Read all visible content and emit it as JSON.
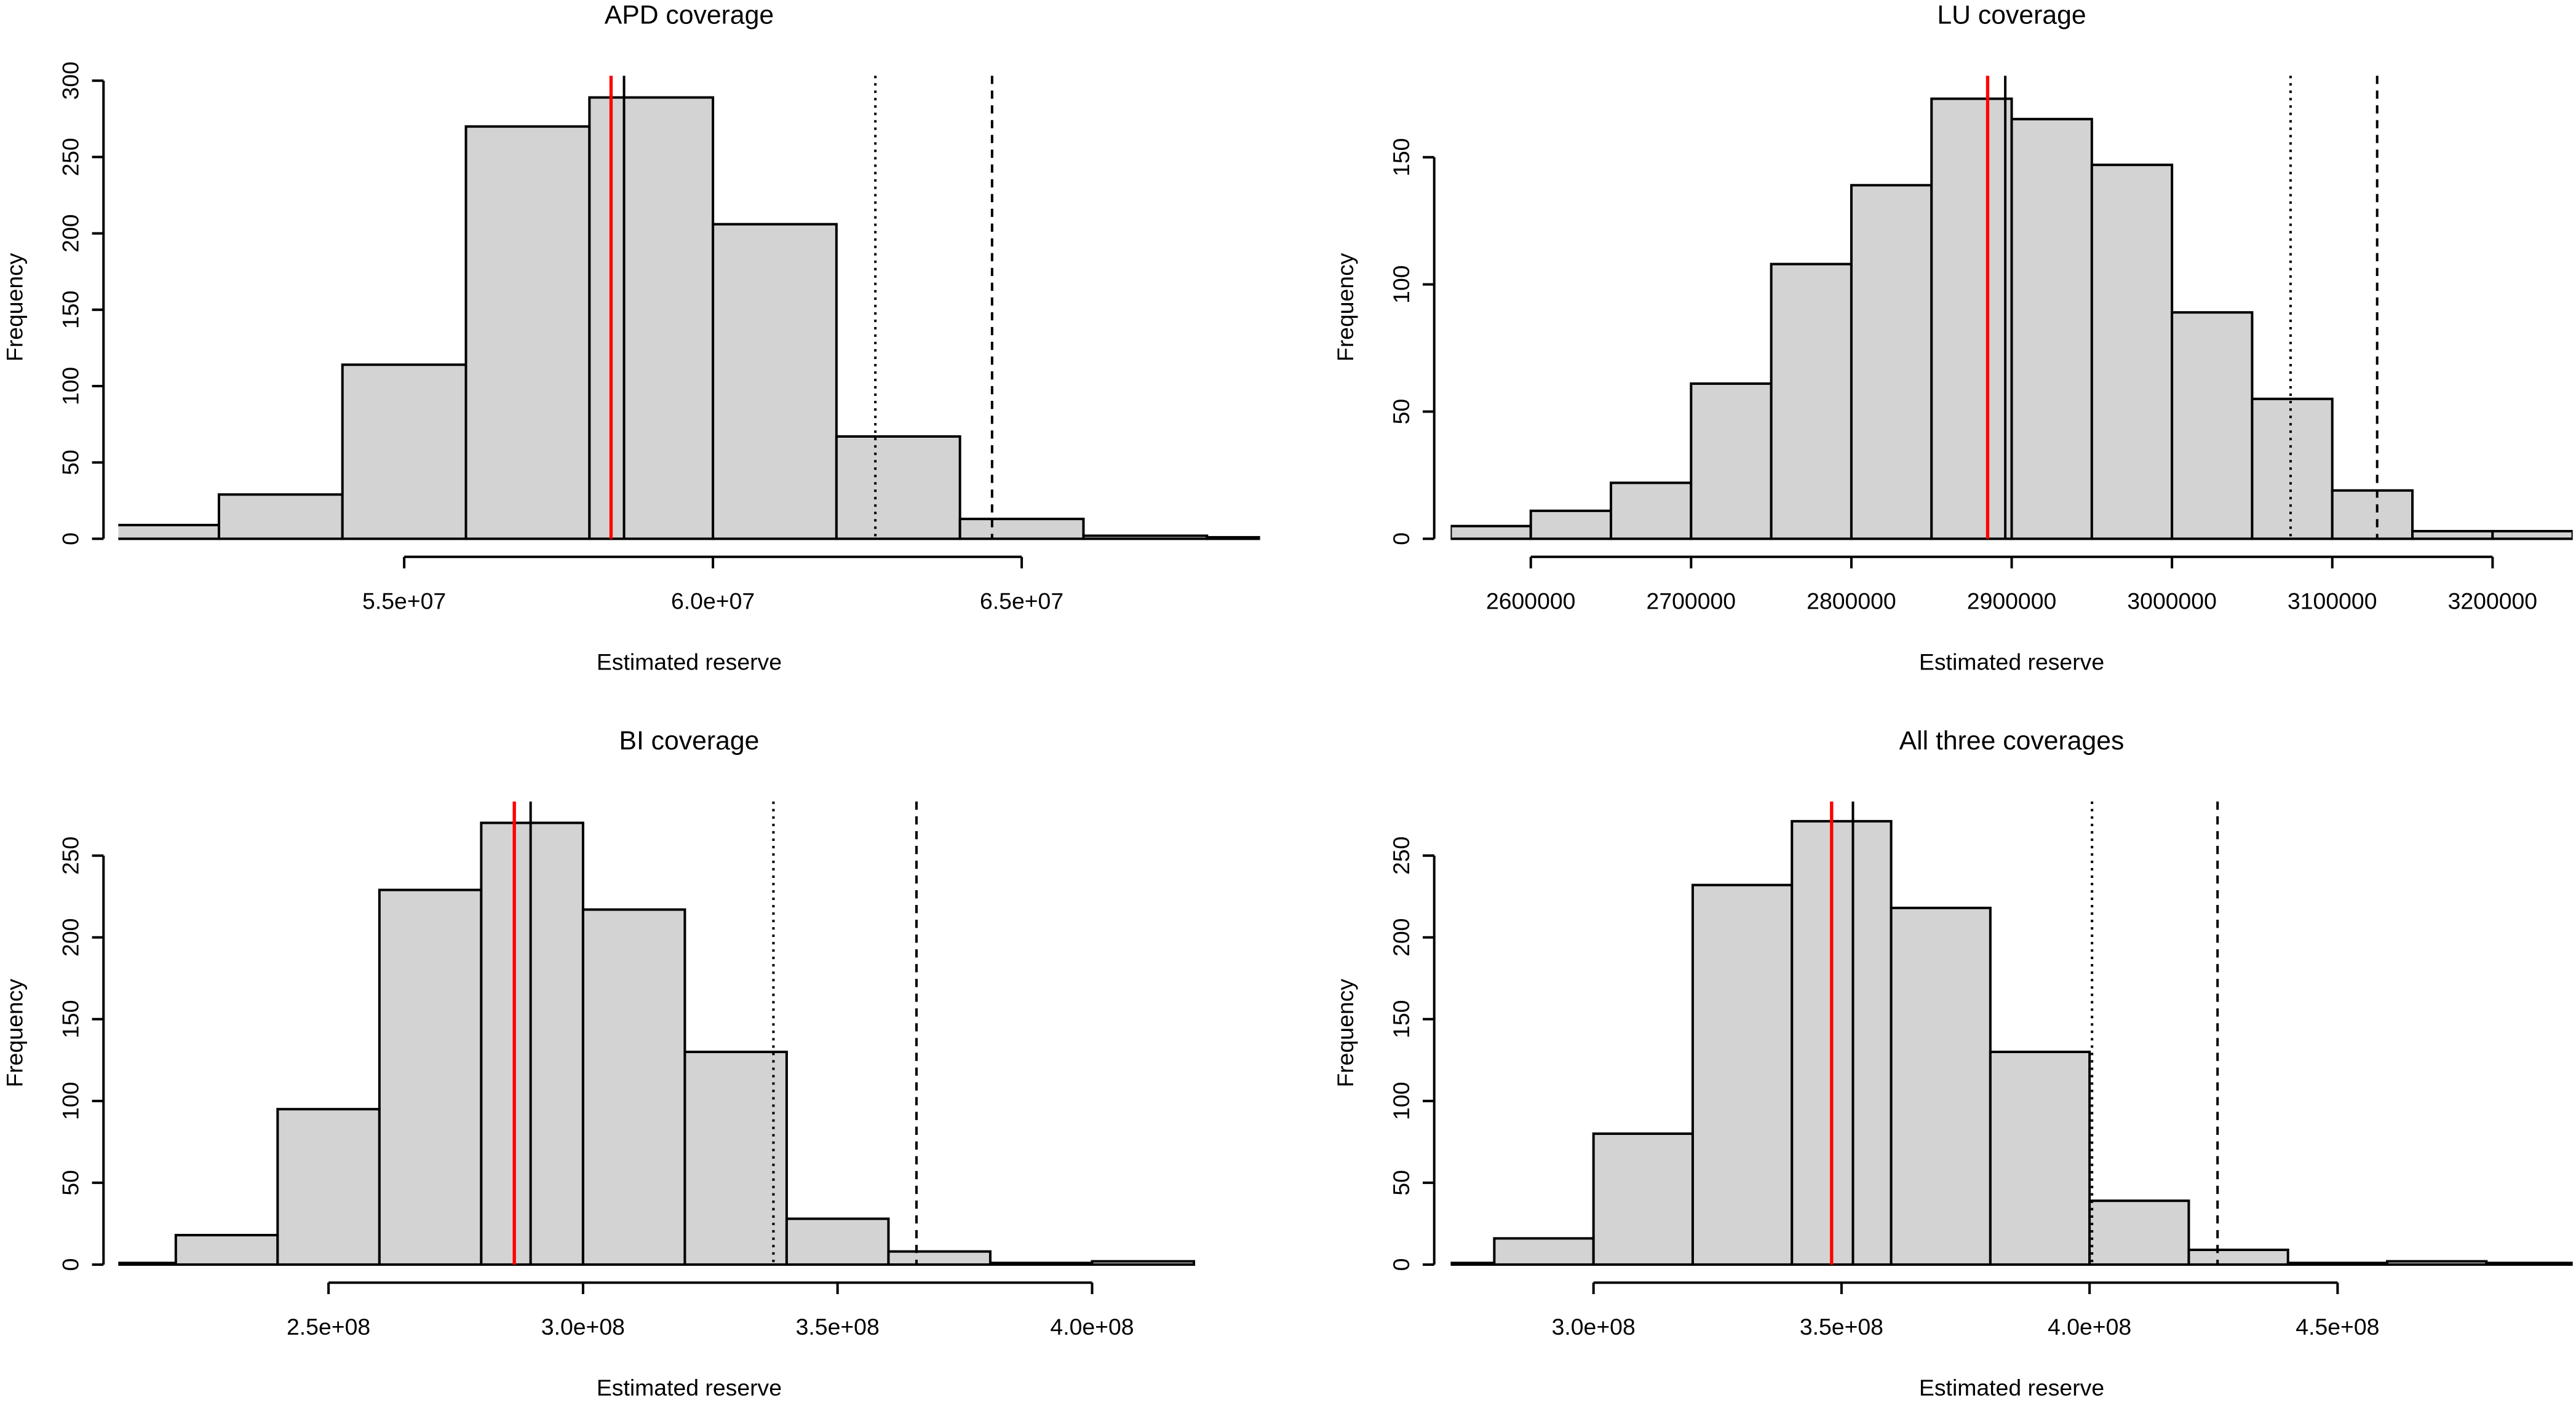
{
  "chart_data": [
    {
      "type": "histogram",
      "title": "APD coverage",
      "xlabel": "Estimated reserve",
      "ylabel": "Frequency",
      "bins": [
        50000000,
        52000000,
        54000000,
        56000000,
        58000000,
        60000000,
        62000000,
        64000000,
        66000000,
        68000000,
        70000000
      ],
      "values": [
        9,
        29,
        114,
        270,
        289,
        206,
        67,
        13,
        2,
        1
      ],
      "color": "#d3d3d3",
      "xlim": [
        50370000,
        68860000
      ],
      "ylim": [
        0,
        300
      ],
      "xticks": [
        {
          "value": 55000000,
          "label": "5.5e+07"
        },
        {
          "value": 60000000,
          "label": "6.0e+07"
        },
        {
          "value": 65000000,
          "label": "6.5e+07"
        }
      ],
      "yticks": [
        0,
        50,
        100,
        150,
        200,
        250,
        300
      ],
      "reference_lines": [
        {
          "value": 58350000,
          "color": "#ff0000",
          "dash": "solid"
        },
        {
          "value": 58560000,
          "color": "#000000",
          "dash": "solid"
        },
        {
          "value": 62630000,
          "color": "#000000",
          "dash": "dotted"
        },
        {
          "value": 64520000,
          "color": "#000000",
          "dash": "dashed"
        }
      ]
    },
    {
      "type": "histogram",
      "title": "LU coverage",
      "xlabel": "Estimated reserve",
      "ylabel": "Frequency",
      "bins": [
        2550000,
        2600000,
        2650000,
        2700000,
        2750000,
        2800000,
        2850000,
        2900000,
        2950000,
        3000000,
        3050000,
        3100000,
        3150000,
        3200000,
        3250000
      ],
      "values": [
        5,
        11,
        22,
        61,
        108,
        139,
        173,
        165,
        147,
        89,
        55,
        19,
        3,
        3
      ],
      "color": "#d3d3d3",
      "xlim": [
        2550000,
        3250000
      ],
      "ylim": [
        0,
        173
      ],
      "xticks": [
        2600000,
        2700000,
        2800000,
        2900000,
        3000000,
        3100000,
        3200000
      ],
      "yticks": [
        0,
        50,
        100,
        150
      ],
      "reference_lines": [
        {
          "value": 2885000,
          "color": "#ff0000",
          "dash": "solid"
        },
        {
          "value": 2896000,
          "color": "#000000",
          "dash": "solid"
        },
        {
          "value": 3074000,
          "color": "#000000",
          "dash": "dotted"
        },
        {
          "value": 3128000,
          "color": "#000000",
          "dash": "dashed"
        }
      ]
    },
    {
      "type": "histogram",
      "title": "BI coverage",
      "xlabel": "Estimated reserve",
      "ylabel": "Frequency",
      "bins": [
        200000000,
        220000000,
        240000000,
        260000000,
        280000000,
        300000000,
        320000000,
        340000000,
        360000000,
        380000000,
        400000000,
        420000000
      ],
      "values": [
        1,
        18,
        95,
        229,
        270,
        217,
        130,
        28,
        8,
        1,
        2
      ],
      "color": "#d3d3d3",
      "xlim": [
        208700000,
        433000000
      ],
      "ylim": [
        0,
        270
      ],
      "xticks": [
        {
          "value": 250000000,
          "label": "2.5e+08"
        },
        {
          "value": 300000000,
          "label": "3.0e+08"
        },
        {
          "value": 350000000,
          "label": "3.5e+08"
        },
        {
          "value": 400000000,
          "label": "4.0e+08"
        }
      ],
      "yticks": [
        0,
        50,
        100,
        150,
        200,
        250
      ],
      "reference_lines": [
        {
          "value": 286500000,
          "color": "#ff0000",
          "dash": "solid"
        },
        {
          "value": 289700000,
          "color": "#000000",
          "dash": "solid"
        },
        {
          "value": 337400000,
          "color": "#000000",
          "dash": "dotted"
        },
        {
          "value": 365500000,
          "color": "#000000",
          "dash": "dashed"
        }
      ]
    },
    {
      "type": "histogram",
      "title": "All three coverages",
      "xlabel": "Estimated reserve",
      "ylabel": "Frequency",
      "bins": [
        260000000,
        280000000,
        300000000,
        320000000,
        340000000,
        360000000,
        380000000,
        400000000,
        420000000,
        440000000,
        460000000,
        480000000,
        500000000
      ],
      "values": [
        1,
        16,
        80,
        232,
        271,
        218,
        130,
        39,
        9,
        1,
        2,
        1
      ],
      "color": "#d3d3d3",
      "xlim": [
        271200000,
        497400000
      ],
      "ylim": [
        0,
        271
      ],
      "xticks": [
        {
          "value": 300000000,
          "label": "3.0e+08"
        },
        {
          "value": 350000000,
          "label": "3.5e+08"
        },
        {
          "value": 400000000,
          "label": "4.0e+08"
        },
        {
          "value": 450000000,
          "label": "4.5e+08"
        }
      ],
      "yticks": [
        0,
        50,
        100,
        150,
        200,
        250
      ],
      "reference_lines": [
        {
          "value": 348000000,
          "color": "#ff0000",
          "dash": "solid"
        },
        {
          "value": 352300000,
          "color": "#000000",
          "dash": "solid"
        },
        {
          "value": 400500000,
          "color": "#000000",
          "dash": "dotted"
        },
        {
          "value": 425800000,
          "color": "#000000",
          "dash": "dashed"
        }
      ]
    }
  ]
}
